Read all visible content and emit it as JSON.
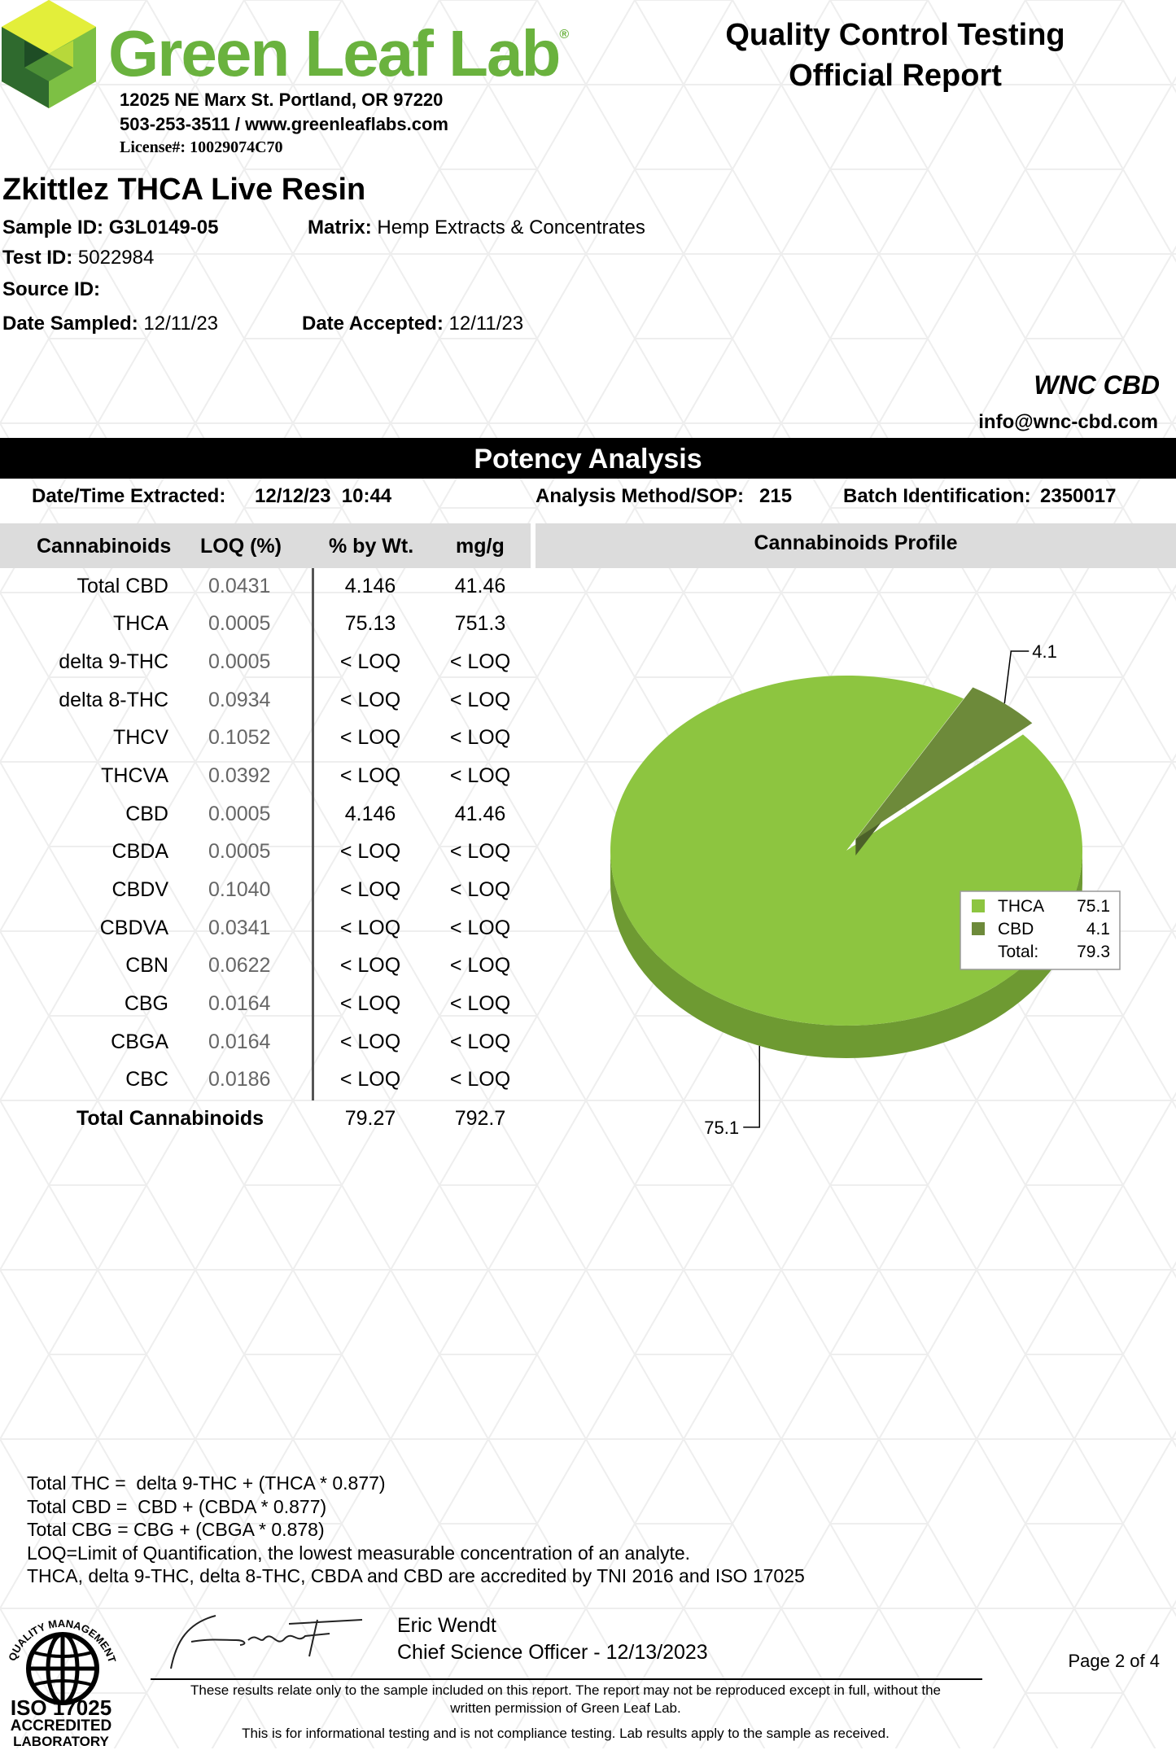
{
  "lab": {
    "name": "Green Leaf Lab",
    "address": "12025 NE Marx St. Portland, OR 97220",
    "contact": "503-253-3511 / www.greenleaflabs.com",
    "license": "License#: 10029074C70"
  },
  "report": {
    "title_line1": "Quality Control Testing",
    "title_line2": "Official Report"
  },
  "sample": {
    "product": "Zkittlez THCA Live Resin",
    "sample_id_label": "Sample ID:",
    "sample_id": "G3L0149-05",
    "matrix_label": "Matrix:",
    "matrix": "Hemp Extracts & Concentrates",
    "test_id_label": "Test ID:",
    "test_id": "5022984",
    "source_id_label": "Source ID:",
    "source_id": "",
    "date_sampled_label": "Date Sampled:",
    "date_sampled": "12/11/23",
    "date_accepted_label": "Date Accepted:",
    "date_accepted": "12/11/23"
  },
  "client": {
    "name": "WNC CBD",
    "email": "info@wnc-cbd.com"
  },
  "potency": {
    "section_title": "Potency Analysis",
    "extracted_label": "Date/Time Extracted:",
    "extracted_value": "12/12/23  10:44",
    "method_label": "Analysis Method/SOP:",
    "method_value": "215",
    "batch_label": "Batch Identification:",
    "batch_value": "2350017",
    "columns": [
      "Cannabinoids",
      "LOQ (%)",
      "% by Wt.",
      "mg/g"
    ],
    "profile_title": "Cannabinoids Profile",
    "rows": [
      {
        "name": "Total CBD",
        "loq": "0.0431",
        "pct": "4.146",
        "mg": "41.46"
      },
      {
        "name": "THCA",
        "loq": "0.0005",
        "pct": "75.13",
        "mg": "751.3"
      },
      {
        "name": "delta 9-THC",
        "loq": "0.0005",
        "pct": "< LOQ",
        "mg": "< LOQ"
      },
      {
        "name": "delta 8-THC",
        "loq": "0.0934",
        "pct": "< LOQ",
        "mg": "< LOQ"
      },
      {
        "name": "THCV",
        "loq": "0.1052",
        "pct": "< LOQ",
        "mg": "< LOQ"
      },
      {
        "name": "THCVA",
        "loq": "0.0392",
        "pct": "< LOQ",
        "mg": "< LOQ"
      },
      {
        "name": "CBD",
        "loq": "0.0005",
        "pct": "4.146",
        "mg": "41.46"
      },
      {
        "name": "CBDA",
        "loq": "0.0005",
        "pct": "< LOQ",
        "mg": "< LOQ"
      },
      {
        "name": "CBDV",
        "loq": "0.1040",
        "pct": "< LOQ",
        "mg": "< LOQ"
      },
      {
        "name": "CBDVA",
        "loq": "0.0341",
        "pct": "< LOQ",
        "mg": "< LOQ"
      },
      {
        "name": "CBN",
        "loq": "0.0622",
        "pct": "< LOQ",
        "mg": "< LOQ"
      },
      {
        "name": "CBG",
        "loq": "0.0164",
        "pct": "< LOQ",
        "mg": "< LOQ"
      },
      {
        "name": "CBGA",
        "loq": "0.0164",
        "pct": "< LOQ",
        "mg": "< LOQ"
      },
      {
        "name": "CBC",
        "loq": "0.0186",
        "pct": "< LOQ",
        "mg": "< LOQ"
      }
    ],
    "total": {
      "name": "Total Cannabinoids",
      "pct": "79.27",
      "mg": "792.7"
    }
  },
  "chart_data": {
    "type": "pie",
    "title": "Cannabinoids Profile",
    "categories": [
      "THCA",
      "CBD"
    ],
    "values": [
      75.1,
      4.1
    ],
    "colors": [
      "#8dc540",
      "#6d8a3a"
    ],
    "legend": {
      "position": "right",
      "total_label": "Total:",
      "total_value": 79.3
    }
  },
  "notes": [
    "Total THC =  delta 9-THC + (THCA * 0.877)",
    "Total CBD =  CBD + (CBDA * 0.877)",
    "Total CBG = CBG + (CBGA * 0.878)",
    "LOQ=Limit of Quantification, the lowest measurable concentration of an analyte.",
    "THCA, delta 9-THC, delta 8-THC, CBDA and CBD are accredited by TNI 2016 and ISO 17025"
  ],
  "certification": {
    "seal_text": "QUALITY MANAGEMENT SYSTEM",
    "line1": "ISO 17025",
    "line2": "ACCREDITED",
    "line3": "LABORATORY"
  },
  "signoff": {
    "name": "Eric Wendt",
    "title": "Chief Science Officer - 12/13/2023"
  },
  "page": "Page 2 of 4",
  "disclaimer": {
    "line1": "These results relate only to the sample included on this report. The report may not be reproduced except in full, without the",
    "line2": "written permission of Green Leaf Lab.",
    "line3": "This is for informational testing and is not compliance testing. Lab results apply to the sample as received."
  }
}
